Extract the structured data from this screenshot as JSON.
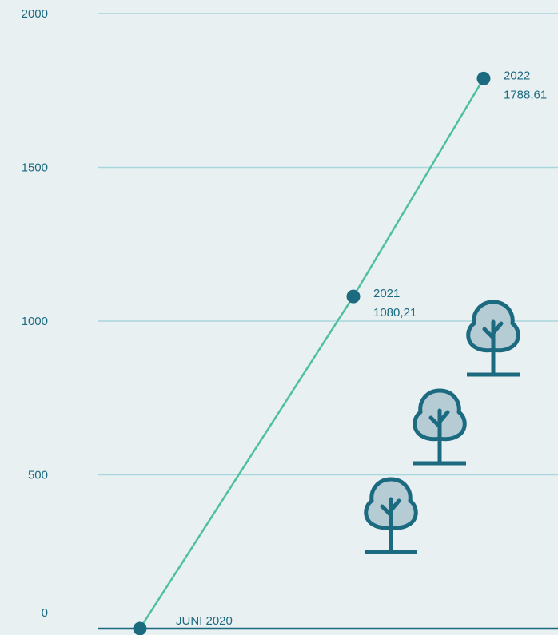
{
  "chart_data": {
    "type": "line",
    "title": "",
    "xlabel": "",
    "ylabel": "",
    "ylim": [
      0,
      2000
    ],
    "yticks": [
      "0",
      "500",
      "1000",
      "1500",
      "2000"
    ],
    "grid": true,
    "series": [
      {
        "color": "#4fc19a",
        "points": [
          {
            "label_line1": "JUNI 2020",
            "label_line2": "",
            "y": 0
          },
          {
            "label_line1": "2021",
            "label_line2": "1080,21",
            "y": 1080.21
          },
          {
            "label_line1": "2022",
            "label_line2": "1788,61",
            "y": 1788.61
          }
        ]
      }
    ],
    "colors": {
      "background": "#e9f0f2",
      "gridline": "#a7d6dd",
      "baseline": "#1b6a80",
      "line": "#4fc19a",
      "marker": "#1b6a80",
      "text": "#1b6a80",
      "tree_fill": "#b6ccd5",
      "tree_stroke": "#1b6a80"
    },
    "decorations": [
      "tree-icon",
      "tree-icon",
      "tree-icon"
    ]
  }
}
